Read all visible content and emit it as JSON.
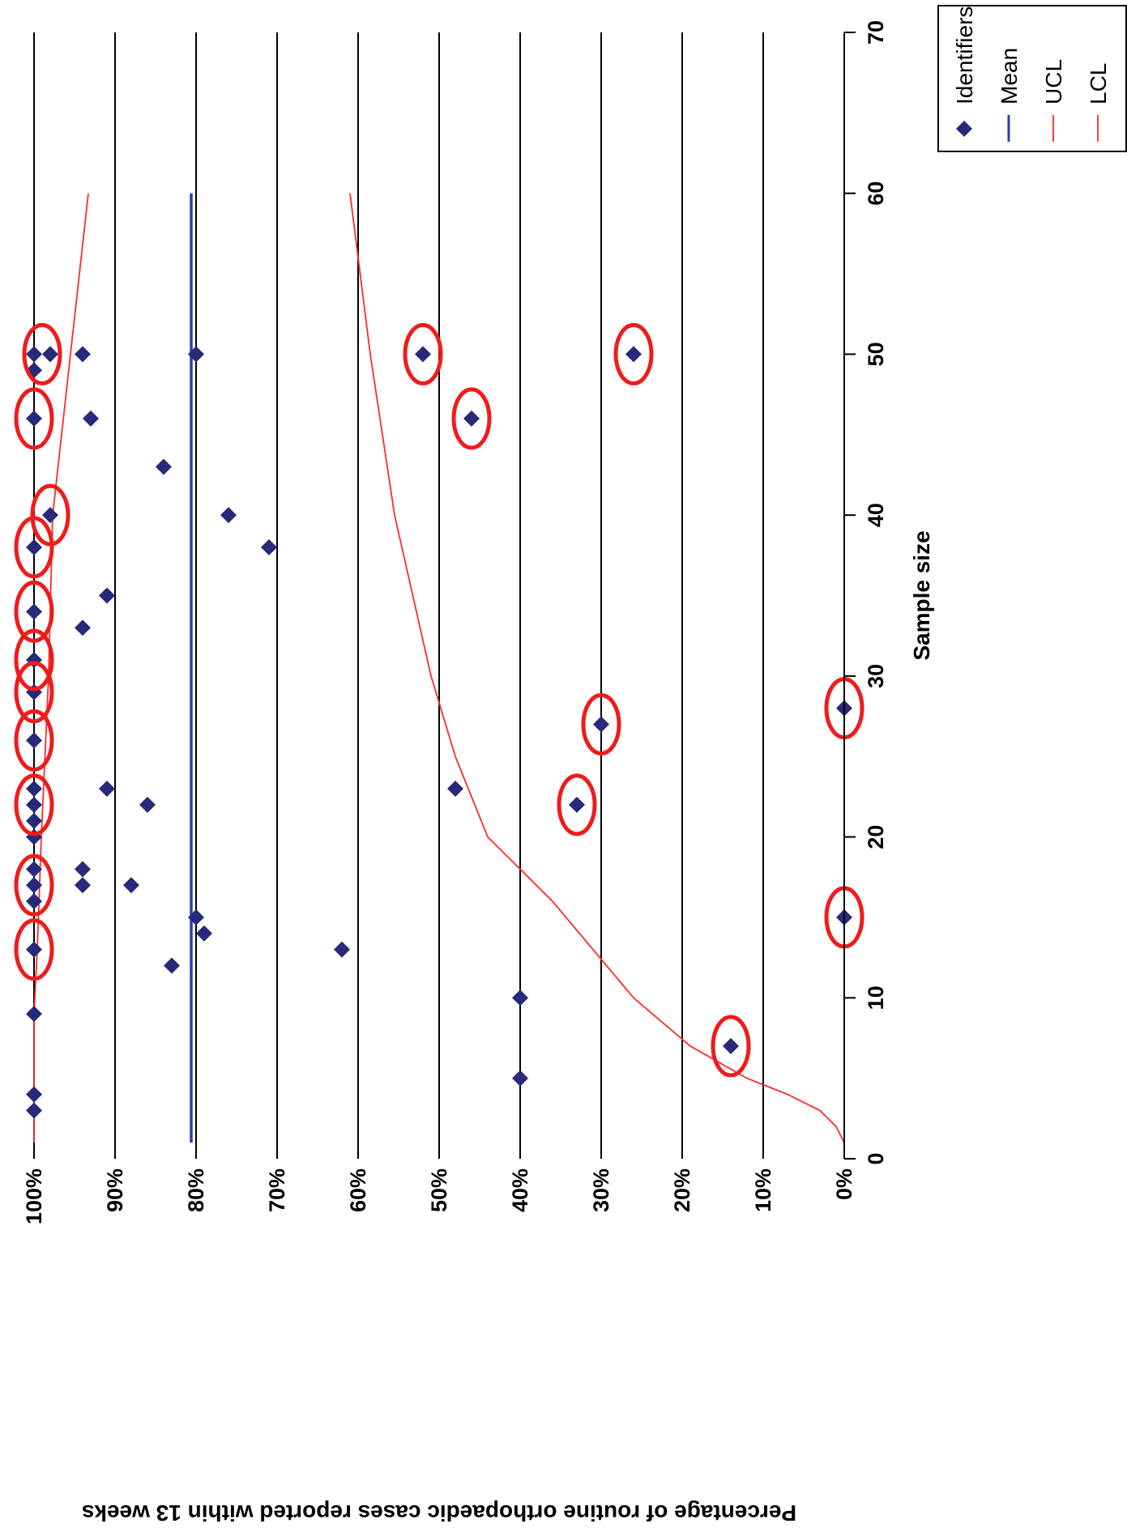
{
  "chart_data": {
    "type": "scatter",
    "xlabel": "Sample size",
    "ylabel": "Percentage of routine orthopaedic cases reported within 13 weeks",
    "xlim": [
      0,
      70
    ],
    "ylim": [
      0,
      100
    ],
    "x_ticks": [
      "0",
      "10",
      "20",
      "30",
      "40",
      "50",
      "60",
      "70"
    ],
    "y_ticks": [
      "0%",
      "10%",
      "20%",
      "30%",
      "40%",
      "50%",
      "60%",
      "70%",
      "80%",
      "90%",
      "100%"
    ],
    "grid": "horizontal gridlines at each 10%",
    "legend_position": "top-right",
    "legend": [
      "Identifiers",
      "Mean",
      "UCL",
      "LCL"
    ],
    "colors": {
      "points": "#27297a",
      "mean": "#2e3fa8",
      "limits": "#ff2a2a",
      "circles": "#ee1c1c"
    },
    "series": [
      {
        "name": "Identifiers",
        "type": "scatter",
        "points": [
          {
            "x": 3,
            "y": 100
          },
          {
            "x": 4,
            "y": 100
          },
          {
            "x": 5,
            "y": 40
          },
          {
            "x": 7,
            "y": 14
          },
          {
            "x": 9,
            "y": 100
          },
          {
            "x": 10,
            "y": 40
          },
          {
            "x": 12,
            "y": 83
          },
          {
            "x": 13,
            "y": 100
          },
          {
            "x": 13,
            "y": 62
          },
          {
            "x": 14,
            "y": 79
          },
          {
            "x": 15,
            "y": 80
          },
          {
            "x": 15,
            "y": 0
          },
          {
            "x": 16,
            "y": 100
          },
          {
            "x": 17,
            "y": 100
          },
          {
            "x": 17,
            "y": 94
          },
          {
            "x": 17,
            "y": 88
          },
          {
            "x": 18,
            "y": 100
          },
          {
            "x": 18,
            "y": 94
          },
          {
            "x": 20,
            "y": 100
          },
          {
            "x": 21,
            "y": 100
          },
          {
            "x": 22,
            "y": 100
          },
          {
            "x": 22,
            "y": 86
          },
          {
            "x": 22,
            "y": 33
          },
          {
            "x": 23,
            "y": 100
          },
          {
            "x": 23,
            "y": 91
          },
          {
            "x": 23,
            "y": 48
          },
          {
            "x": 26,
            "y": 100
          },
          {
            "x": 27,
            "y": 30
          },
          {
            "x": 28,
            "y": 0
          },
          {
            "x": 29,
            "y": 100
          },
          {
            "x": 31,
            "y": 100
          },
          {
            "x": 33,
            "y": 94
          },
          {
            "x": 34,
            "y": 100
          },
          {
            "x": 35,
            "y": 91
          },
          {
            "x": 38,
            "y": 100
          },
          {
            "x": 38,
            "y": 71
          },
          {
            "x": 40,
            "y": 98
          },
          {
            "x": 40,
            "y": 76
          },
          {
            "x": 43,
            "y": 84
          },
          {
            "x": 46,
            "y": 100
          },
          {
            "x": 46,
            "y": 93
          },
          {
            "x": 46,
            "y": 46
          },
          {
            "x": 49,
            "y": 100
          },
          {
            "x": 50,
            "y": 100
          },
          {
            "x": 50,
            "y": 98
          },
          {
            "x": 50,
            "y": 94
          },
          {
            "x": 50,
            "y": 80
          },
          {
            "x": 50,
            "y": 52
          },
          {
            "x": 50,
            "y": 26
          }
        ]
      },
      {
        "name": "Mean",
        "type": "line",
        "points": [
          {
            "x": 1,
            "y": 80.6
          },
          {
            "x": 60,
            "y": 80.6
          }
        ]
      },
      {
        "name": "UCL",
        "type": "line",
        "points": [
          {
            "x": 1,
            "y": 100
          },
          {
            "x": 9,
            "y": 100
          },
          {
            "x": 13,
            "y": 99.6
          },
          {
            "x": 20,
            "y": 99.1
          },
          {
            "x": 30,
            "y": 98.2
          },
          {
            "x": 40,
            "y": 97.7
          },
          {
            "x": 50,
            "y": 95.5
          },
          {
            "x": 60,
            "y": 93.3
          }
        ]
      },
      {
        "name": "LCL",
        "type": "line",
        "points": [
          {
            "x": 1,
            "y": 0
          },
          {
            "x": 2,
            "y": 1
          },
          {
            "x": 3,
            "y": 3
          },
          {
            "x": 4,
            "y": 7
          },
          {
            "x": 5,
            "y": 12
          },
          {
            "x": 7,
            "y": 19
          },
          {
            "x": 10,
            "y": 26
          },
          {
            "x": 13,
            "y": 31
          },
          {
            "x": 16,
            "y": 36
          },
          {
            "x": 18,
            "y": 40
          },
          {
            "x": 20,
            "y": 44
          },
          {
            "x": 25,
            "y": 48
          },
          {
            "x": 30,
            "y": 51
          },
          {
            "x": 40,
            "y": 55.5
          },
          {
            "x": 50,
            "y": 58.5
          },
          {
            "x": 60,
            "y": 61
          }
        ]
      }
    ],
    "highlighted": [
      {
        "x": 13,
        "y": 100
      },
      {
        "x": 17,
        "y": 100
      },
      {
        "x": 22,
        "y": 100
      },
      {
        "x": 26,
        "y": 100
      },
      {
        "x": 29,
        "y": 100
      },
      {
        "x": 31,
        "y": 100
      },
      {
        "x": 34,
        "y": 100
      },
      {
        "x": 38,
        "y": 100
      },
      {
        "x": 40,
        "y": 98
      },
      {
        "x": 46,
        "y": 100
      },
      {
        "x": 50,
        "y": 99
      },
      {
        "x": 7,
        "y": 14
      },
      {
        "x": 15,
        "y": 0
      },
      {
        "x": 22,
        "y": 33
      },
      {
        "x": 27,
        "y": 30
      },
      {
        "x": 28,
        "y": 0
      },
      {
        "x": 46,
        "y": 46
      },
      {
        "x": 50,
        "y": 52
      },
      {
        "x": 50,
        "y": 26
      }
    ]
  }
}
